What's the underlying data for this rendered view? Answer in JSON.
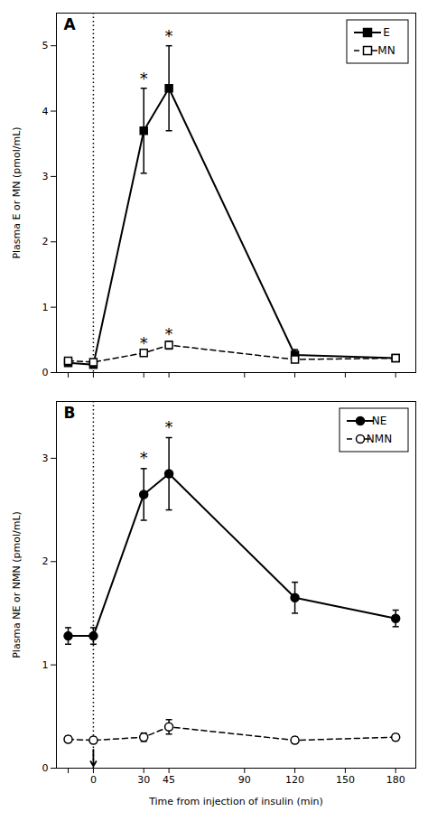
{
  "chart_data": [
    {
      "type": "line",
      "title": "A",
      "ylabel": "Plasma E or MN (pmol/mL)",
      "xlim": [
        -22,
        192
      ],
      "xticks": [
        {
          "value": -15,
          "label": null
        },
        0,
        30,
        45,
        90,
        120,
        150,
        180
      ],
      "tick_labels": "y",
      "ylim": [
        0,
        5.5
      ],
      "yticks": [
        0,
        1,
        2,
        3,
        4,
        5
      ],
      "legend": "upper right",
      "series": [
        {
          "name": "E",
          "color": "#000000",
          "marker": "square",
          "line_style": "solid",
          "x": [
            -15,
            0,
            30,
            45,
            120,
            180
          ],
          "values": [
            0.15,
            0.12,
            3.7,
            4.35,
            0.27,
            0.22
          ],
          "errors": [
            0.05,
            0.04,
            0.65,
            0.65,
            0.08,
            0.05
          ]
        },
        {
          "name": "MN",
          "color": "#000000",
          "marker": "open-square",
          "line_style": "dashed",
          "x": [
            -15,
            0,
            30,
            45,
            120,
            180
          ],
          "values": [
            0.18,
            0.16,
            0.3,
            0.42,
            0.2,
            0.22
          ],
          "errors": [
            0.03,
            0.03,
            0.04,
            0.06,
            0.03,
            0.03
          ]
        }
      ],
      "annotations": [
        {
          "type": "vline",
          "x": 0,
          "line_style": "dotted"
        },
        {
          "type": "text",
          "text": "*",
          "x": 30,
          "y": 4.42
        },
        {
          "type": "text",
          "text": "*",
          "x": 45,
          "y": 5.07
        },
        {
          "type": "text",
          "text": "*",
          "x": 30,
          "y": 0.36
        },
        {
          "type": "text",
          "text": "*",
          "x": 45,
          "y": 0.51
        }
      ]
    },
    {
      "type": "line",
      "title": "B",
      "xlabel": "Time from injection of insulin (min)",
      "ylabel": "Plasma NE or NMN (pmol/mL)",
      "xlim": [
        -22,
        192
      ],
      "xticks": [
        {
          "value": -15,
          "label": null
        },
        0,
        30,
        45,
        90,
        120,
        150,
        180
      ],
      "ylim": [
        0,
        3.55
      ],
      "yticks": [
        0,
        1,
        2,
        3
      ],
      "legend": "upper right",
      "series": [
        {
          "name": "NE",
          "color": "#000000",
          "marker": "circle",
          "line_style": "solid",
          "x": [
            -15,
            0,
            30,
            45,
            120,
            180
          ],
          "values": [
            1.28,
            1.28,
            2.65,
            2.85,
            1.65,
            1.45
          ],
          "errors": [
            0.08,
            0.08,
            0.25,
            0.35,
            0.15,
            0.08
          ]
        },
        {
          "name": "NMN",
          "color": "#000000",
          "marker": "open-circle",
          "line_style": "dashed",
          "x": [
            -15,
            0,
            30,
            45,
            120,
            180
          ],
          "values": [
            0.28,
            0.27,
            0.3,
            0.4,
            0.27,
            0.3
          ],
          "errors": [
            0.03,
            0.03,
            0.04,
            0.07,
            0.03,
            0.03
          ]
        }
      ],
      "annotations": [
        {
          "type": "vline",
          "x": 0,
          "line_style": "dotted"
        },
        {
          "type": "text",
          "text": "*",
          "x": 30,
          "y": 2.95
        },
        {
          "type": "text",
          "text": "*",
          "x": 45,
          "y": 3.25
        },
        {
          "type": "arrow",
          "x": 0,
          "y": 0.18,
          "y_end": 0.02
        }
      ]
    }
  ]
}
